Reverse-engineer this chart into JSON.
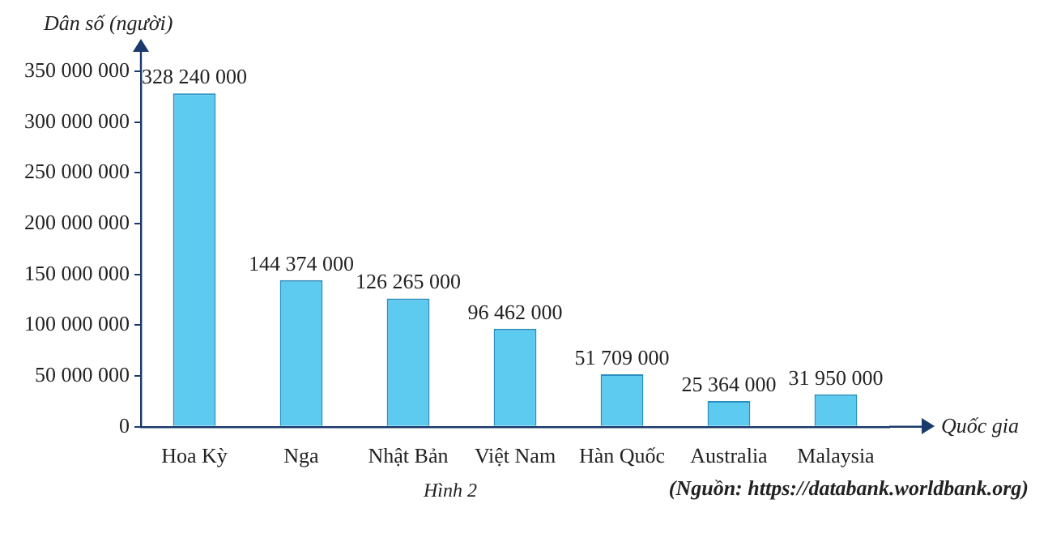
{
  "chart_data": {
    "type": "bar",
    "title": "Hình 2",
    "ylabel": "Dân số (người)",
    "xlabel": "Quốc gia",
    "categories": [
      "Hoa Kỳ",
      "Nga",
      "Nhật Bản",
      "Việt Nam",
      "Hàn Quốc",
      "Australia",
      "Malaysia"
    ],
    "values": [
      328240000,
      144374000,
      126265000,
      96462000,
      51709000,
      25364000,
      31950000
    ],
    "color": "#5ccbef",
    "ylim": [
      0,
      350000000
    ],
    "yticks": [
      0,
      50000000,
      100000000,
      150000000,
      200000000,
      250000000,
      300000000,
      350000000
    ],
    "data_labels": true,
    "annotations": [
      "(Nguồn: https://databank.worldbank.org)"
    ]
  }
}
